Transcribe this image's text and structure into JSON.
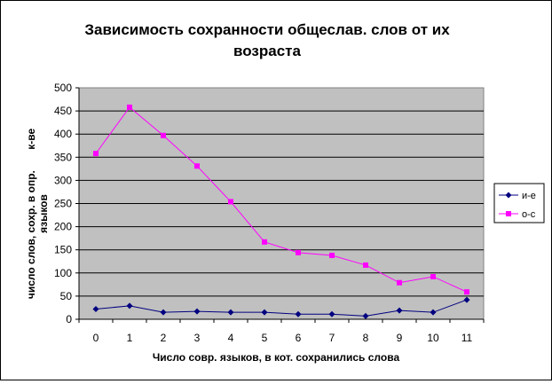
{
  "chart_data": {
    "type": "line",
    "title_lines": [
      "Зависимость сохранности общеслав. слов от их",
      "возраста"
    ],
    "xlabel": "Число совр. языков, в кот. сохранились слова",
    "ylabel_lines": [
      "число слов, сохр. в опр.       к-ве",
      "языков"
    ],
    "categories": [
      "0",
      "1",
      "2",
      "3",
      "4",
      "5",
      "6",
      "7",
      "8",
      "9",
      "10",
      "11"
    ],
    "ylim": [
      0,
      500
    ],
    "yticks": [
      0,
      50,
      100,
      150,
      200,
      250,
      300,
      350,
      400,
      450,
      500
    ],
    "grid": true,
    "legend_position": "right",
    "series": [
      {
        "name": "и-е",
        "color": "#000080",
        "marker": "diamond",
        "values": [
          22,
          29,
          15,
          17,
          15,
          15,
          11,
          11,
          7,
          19,
          15,
          42
        ]
      },
      {
        "name": "о-с",
        "color": "#ff00ff",
        "marker": "square",
        "values": [
          358,
          458,
          397,
          331,
          254,
          167,
          144,
          138,
          117,
          79,
          92,
          59
        ]
      }
    ]
  }
}
